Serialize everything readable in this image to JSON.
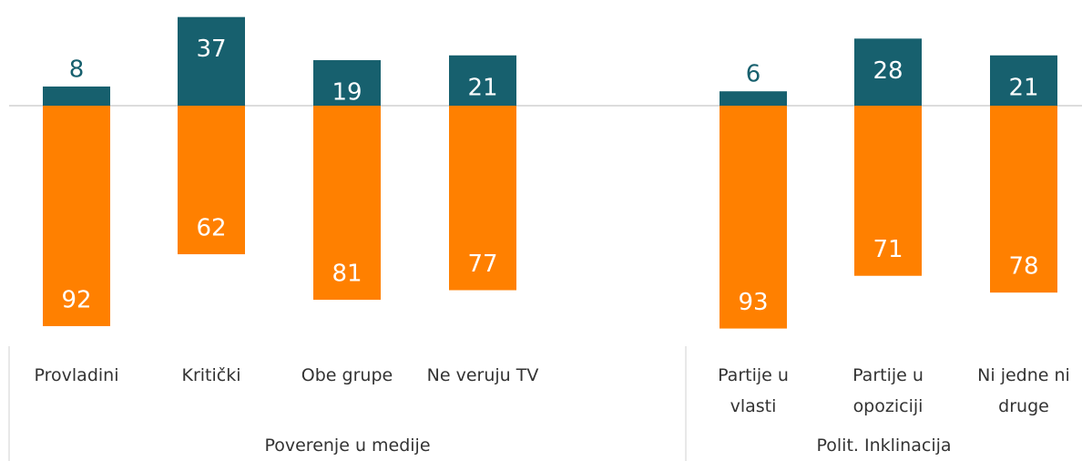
{
  "chart_data": {
    "type": "diverging_bar",
    "groups": [
      {
        "label": "Poverenje u medije",
        "categories": [
          "Provladini",
          "Kritički",
          "Obe grupe",
          "Ne veruju TV"
        ]
      },
      {
        "label": "Polit. Inklinacija",
        "categories": [
          "Partije u vlasti",
          "Partije u opoziciji",
          "Ni jedne ni druge"
        ]
      }
    ],
    "series": [
      {
        "color": "#17606e",
        "values": [
          8,
          37,
          19,
          21,
          6,
          28,
          21
        ]
      },
      {
        "color": "#ff8000",
        "values": [
          92,
          62,
          81,
          77,
          93,
          71,
          78
        ]
      }
    ]
  }
}
